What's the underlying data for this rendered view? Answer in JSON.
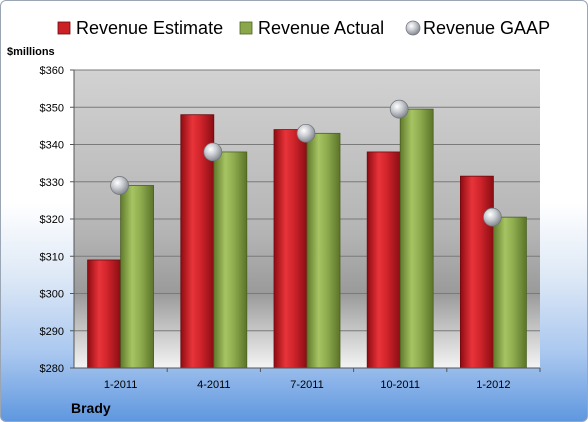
{
  "chart_data": {
    "type": "bar",
    "title": "",
    "ylabel": "$millions",
    "xlabel": "",
    "company": "Brady",
    "categories": [
      "1-2011",
      "4-2011",
      "7-2011",
      "10-2011",
      "1-2012"
    ],
    "series": [
      {
        "name": "Revenue Estimate",
        "kind": "bar",
        "color": "#cc2027",
        "values": [
          309,
          348,
          344,
          338,
          331.5
        ]
      },
      {
        "name": "Revenue Actual",
        "kind": "bar",
        "color": "#8aa84a",
        "values": [
          329,
          338,
          343,
          349.5,
          320.5
        ]
      },
      {
        "name": "Revenue GAAP",
        "kind": "marker",
        "color": "#b9bcc2",
        "values": [
          329,
          338,
          343,
          349.5,
          320.5
        ]
      }
    ],
    "ylim": [
      280,
      360
    ],
    "yticks": [
      "$280",
      "$290",
      "$300",
      "$310",
      "$320",
      "$330",
      "$340",
      "$350",
      "$360"
    ],
    "ytick_values": [
      280,
      290,
      300,
      310,
      320,
      330,
      340,
      350,
      360
    ],
    "grid": true,
    "legend_position": "top"
  }
}
